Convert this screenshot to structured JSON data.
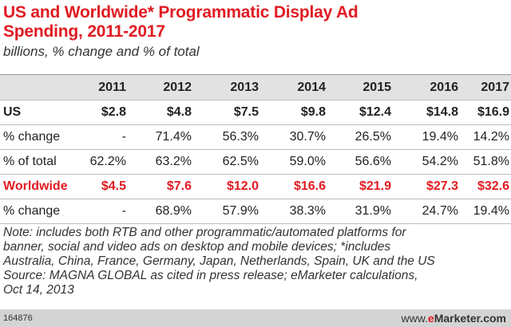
{
  "chart_data": {
    "type": "table",
    "title": [
      "US and Worldwide* Programmatic Display Ad",
      "Spending, 2011-2017"
    ],
    "subtitle": "billions, % change and % of total",
    "columns": [
      "2011",
      "2012",
      "2013",
      "2014",
      "2015",
      "2016",
      "2017"
    ],
    "rows": [
      {
        "label": "US",
        "values": [
          "$2.8",
          "$4.8",
          "$7.5",
          "$9.8",
          "$12.4",
          "$14.8",
          "$16.9"
        ]
      },
      {
        "label": "% change",
        "values": [
          "-",
          "71.4%",
          "56.3%",
          "30.7%",
          "26.5%",
          "19.4%",
          "14.2%"
        ]
      },
      {
        "label": "% of total",
        "values": [
          "62.2%",
          "63.2%",
          "62.5%",
          "59.0%",
          "56.6%",
          "54.2%",
          "51.8%"
        ]
      },
      {
        "label": "Worldwide",
        "values": [
          "$4.5",
          "$7.6",
          "$12.0",
          "$16.6",
          "$21.9",
          "$27.3",
          "$32.6"
        ]
      },
      {
        "label": "% change",
        "values": [
          "-",
          "68.9%",
          "57.9%",
          "38.3%",
          "31.9%",
          "24.7%",
          "19.4%"
        ]
      }
    ],
    "notes": [
      "Note: includes both RTB and other programmatic/automated platforms for",
      "banner, social and video ads on desktop and mobile devices; *includes",
      "Australia, China, France, Germany, Japan, Netherlands, Spain, UK and the US",
      "Source: MAGNA GLOBAL as cited in press release; eMarketer calculations,",
      "Oct 14, 2013"
    ],
    "footer_id": "164876",
    "logo": {
      "prefix": "www.",
      "e": "e",
      "rest": "Marketer.com"
    },
    "colors": {
      "accent": "#e01b22",
      "header_bg": "#e2e2e2",
      "footer_bg": "#d4d4d4"
    }
  }
}
